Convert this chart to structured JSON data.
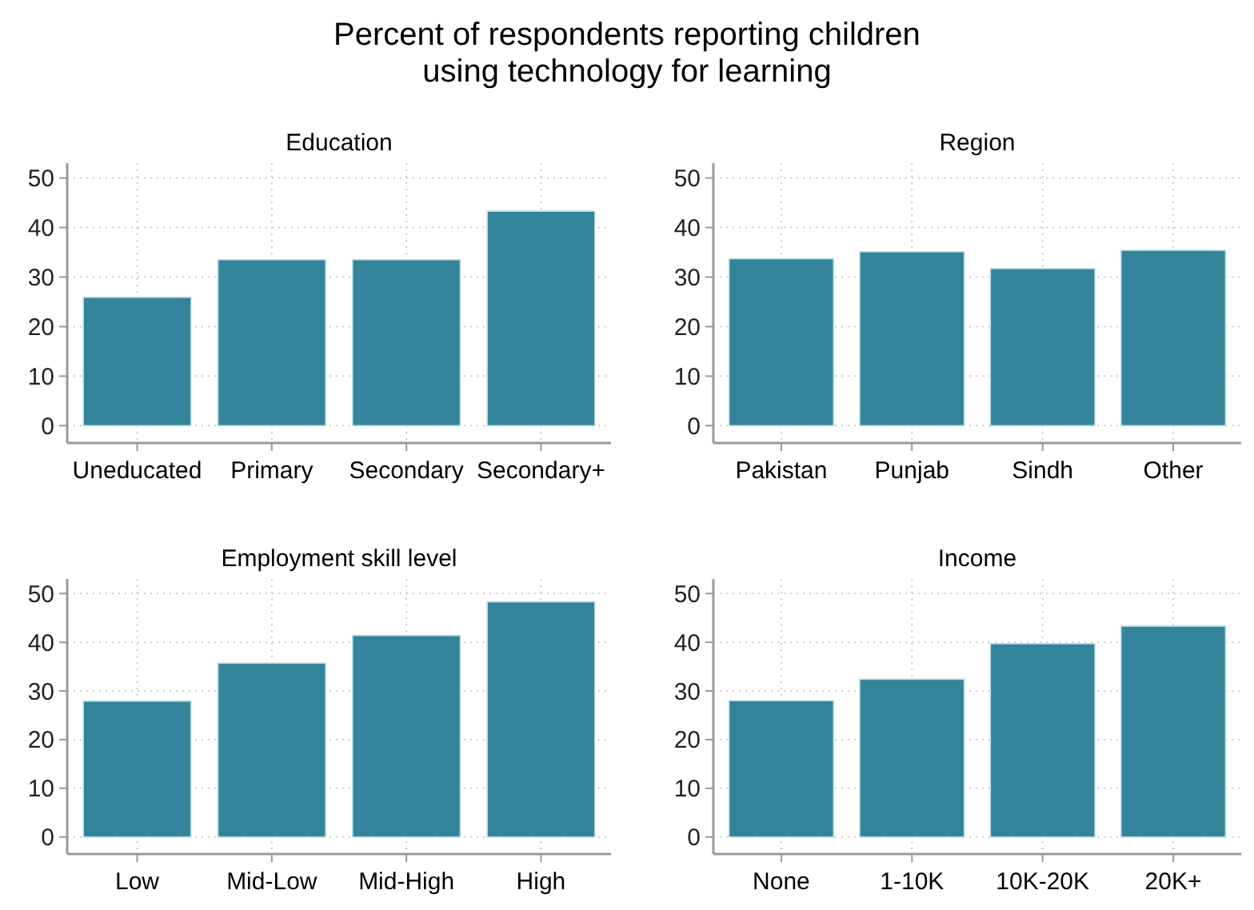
{
  "chart_data": [
    {
      "type": "other",
      "title": "Percent of respondents reporting children\nusing technology for learning"
    },
    {
      "type": "bar",
      "title": "Education",
      "categories": [
        "Uneducated",
        "Primary",
        "Secondary",
        "Secondary+"
      ],
      "values": [
        25.9,
        33.5,
        33.5,
        43.3
      ],
      "color": "#33849a",
      "ylim": [
        -3.5,
        53
      ],
      "yticks": [
        0,
        10,
        20,
        30,
        40,
        50
      ],
      "grid": true
    },
    {
      "type": "bar",
      "title": "Region",
      "categories": [
        "Pakistan",
        "Punjab",
        "Sindh",
        "Other"
      ],
      "values": [
        33.7,
        35.1,
        31.7,
        35.4
      ],
      "color": "#33849a",
      "ylim": [
        -3.5,
        53
      ],
      "yticks": [
        0,
        10,
        20,
        30,
        40,
        50
      ],
      "grid": true
    },
    {
      "type": "bar",
      "title": "Employment skill level",
      "categories": [
        "Low",
        "Mid-Low",
        "Mid-High",
        "High"
      ],
      "values": [
        27.9,
        35.7,
        41.4,
        48.3
      ],
      "color": "#33849a",
      "ylim": [
        -3.5,
        53
      ],
      "yticks": [
        0,
        10,
        20,
        30,
        40,
        50
      ],
      "grid": true
    },
    {
      "type": "bar",
      "title": "Income",
      "categories": [
        "None",
        "1-10K",
        "10K-20K",
        "20K+"
      ],
      "values": [
        28.0,
        32.4,
        39.7,
        43.3
      ],
      "color": "#33849a",
      "ylim": [
        -3.5,
        53
      ],
      "yticks": [
        0,
        10,
        20,
        30,
        40,
        50
      ],
      "grid": true
    }
  ]
}
